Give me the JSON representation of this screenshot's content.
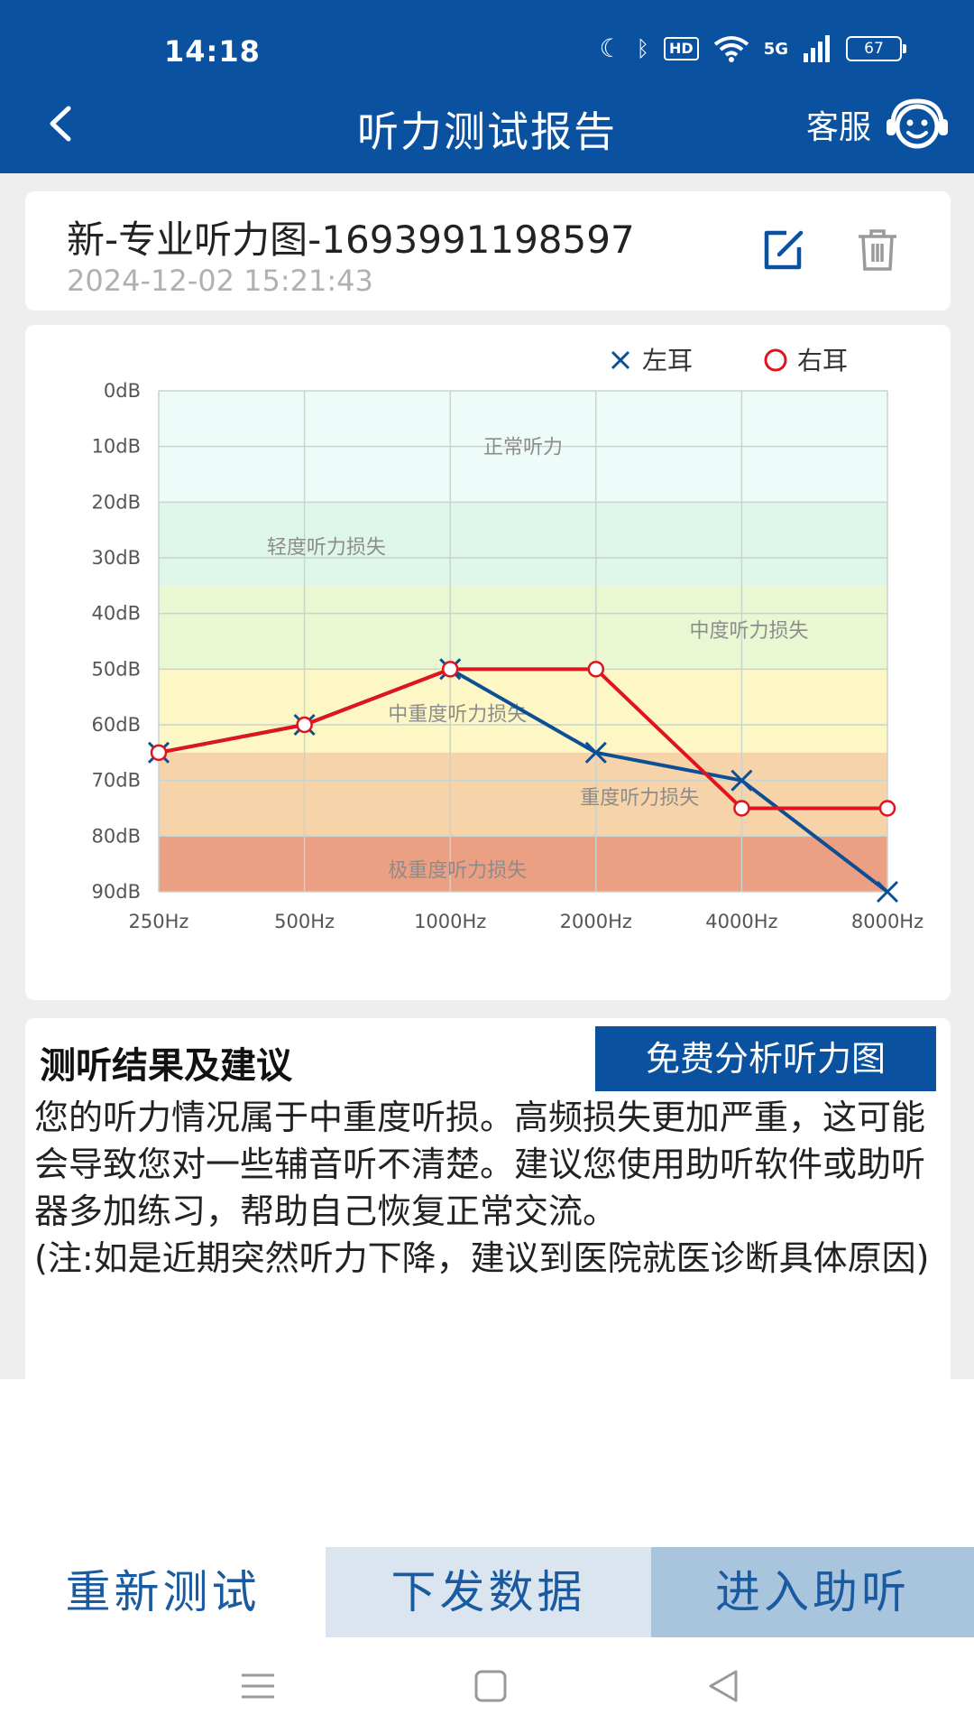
{
  "status": {
    "time": "14:18",
    "network": "5G",
    "hd": "HD",
    "battery": "67"
  },
  "header": {
    "title": "听力测试报告",
    "service_label": "客服"
  },
  "record": {
    "name": "新-专业听力图-1693991198597",
    "date": "2024-12-02 15:21:43"
  },
  "chart_data": {
    "type": "line",
    "title": "",
    "xlabel": "",
    "ylabel": "",
    "categories": [
      "250Hz",
      "500Hz",
      "1000Hz",
      "2000Hz",
      "4000Hz",
      "8000Hz"
    ],
    "y_ticks": [
      "0dB",
      "10dB",
      "20dB",
      "30dB",
      "40dB",
      "50dB",
      "60dB",
      "70dB",
      "80dB",
      "90dB"
    ],
    "ylim": [
      0,
      90
    ],
    "y_inverted": true,
    "grid": true,
    "legend_position": "top-right",
    "series": [
      {
        "name": "左耳",
        "marker": "x",
        "color": "#0d4f95",
        "values": [
          65,
          60,
          50,
          65,
          70,
          90
        ]
      },
      {
        "name": "右耳",
        "marker": "circle",
        "color": "#e0141e",
        "values": [
          65,
          60,
          50,
          50,
          75,
          75
        ]
      }
    ],
    "bands": [
      {
        "from": 0,
        "to": 20,
        "color": "#eefcf9"
      },
      {
        "from": 20,
        "to": 35,
        "color": "#dff7ea"
      },
      {
        "from": 35,
        "to": 50,
        "color": "#e9f8d3"
      },
      {
        "from": 50,
        "to": 65,
        "color": "#fcf7c4"
      },
      {
        "from": 65,
        "to": 80,
        "color": "#f6d3a8"
      },
      {
        "from": 80,
        "to": 90,
        "color": "#eb9f83"
      }
    ],
    "zone_labels": [
      {
        "text": "正常听力",
        "x": 2.5,
        "y": 10
      },
      {
        "text": "轻度听力损失",
        "x": 1.15,
        "y": 28
      },
      {
        "text": "中度听力损失",
        "x": 4.05,
        "y": 43
      },
      {
        "text": "中重度听力损失",
        "x": 2.05,
        "y": 58
      },
      {
        "text": "重度听力损失",
        "x": 3.3,
        "y": 73
      },
      {
        "text": "极重度听力损失",
        "x": 2.05,
        "y": 86
      }
    ]
  },
  "result": {
    "title": "测听结果及建议",
    "analyze_label": "免费分析听力图",
    "text": "您的听力情况属于中重度听损。高频损失更加严重，这可能会导致您对一些辅音听不清楚。建议您使用助听软件或助听器多加练习，帮助自己恢复正常交流。",
    "note": "(注:如是近期突然听力下降，建议到医院就医诊断具体原因)"
  },
  "actions": {
    "retest": "重新测试",
    "send_data": "下发数据",
    "enter_aid": "进入助听"
  }
}
